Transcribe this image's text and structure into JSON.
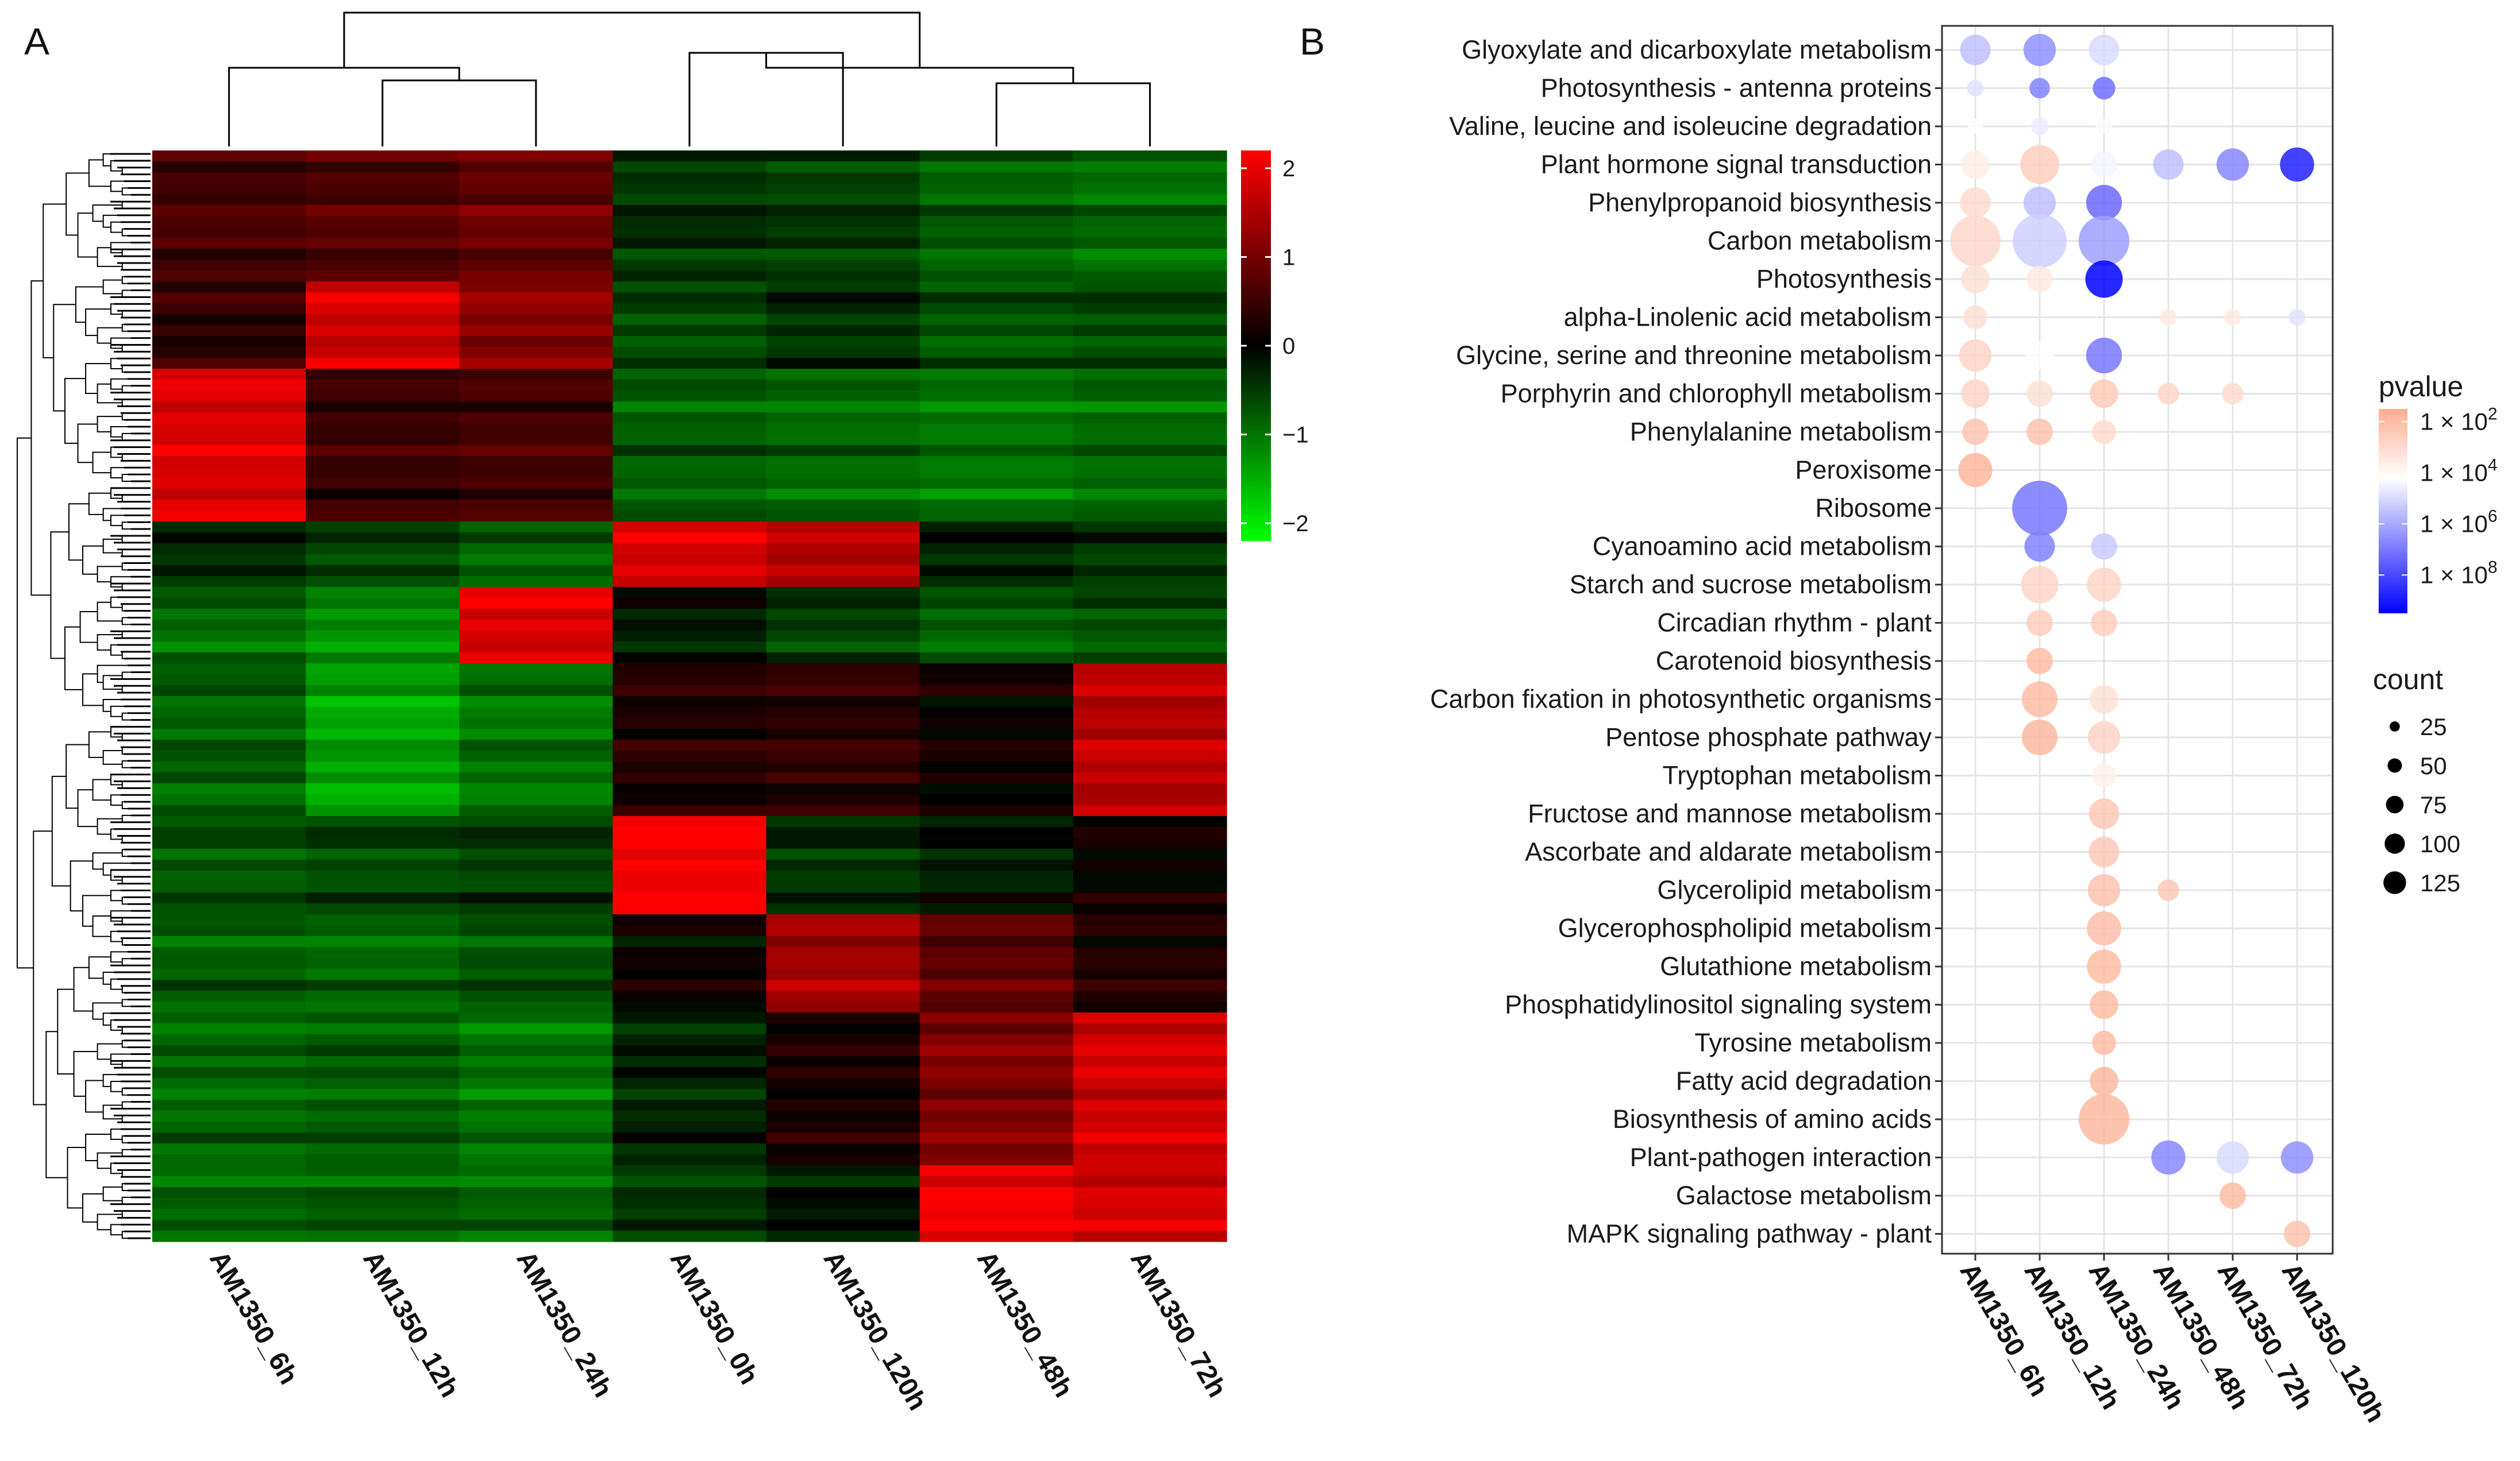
{
  "panels": {
    "a": "A",
    "b": "B"
  },
  "chart_data": [
    {
      "type": "heatmap",
      "title": "A",
      "columns": [
        "AM1350_6h",
        "AM1350_12h",
        "AM1350_24h",
        "AM1350_0h",
        "AM1350_120h",
        "AM1350_48h",
        "AM1350_72h"
      ],
      "colorbar": {
        "ticks": [
          2,
          1,
          0,
          -1,
          -2
        ],
        "tick_labels": [
          "2",
          "1",
          "0",
          "−1",
          "−2"
        ],
        "range": [
          -2.2,
          2.2
        ],
        "low_color": "#00ff00",
        "mid_color": "#000000",
        "high_color": "#ff0000"
      },
      "column_dendrogram": "((AM1350_6h,(AM1350_12h,AM1350_24h)),((AM1350_0h,AM1350_120h),(AM1350_48h,AM1350_72h)))",
      "row_blocks": [
        {
          "rows": 12,
          "values": [
            0.6,
            0.7,
            0.9,
            -0.4,
            -0.5,
            -0.8,
            -0.9
          ]
        },
        {
          "rows": 8,
          "values": [
            0.4,
            1.8,
            1.2,
            -0.6,
            -0.4,
            -0.7,
            -0.6
          ]
        },
        {
          "rows": 14,
          "values": [
            1.9,
            0.5,
            0.6,
            -0.8,
            -0.9,
            -1.0,
            -0.9
          ]
        },
        {
          "rows": 6,
          "values": [
            -0.3,
            -0.5,
            -0.8,
            1.9,
            1.6,
            -0.2,
            -0.4
          ]
        },
        {
          "rows": 7,
          "values": [
            -0.9,
            -1.2,
            1.9,
            -0.2,
            -0.5,
            -0.8,
            -0.7
          ]
        },
        {
          "rows": 14,
          "values": [
            -0.8,
            -1.4,
            -1.0,
            0.3,
            0.4,
            0.1,
            1.6
          ]
        },
        {
          "rows": 9,
          "values": [
            -0.7,
            -0.6,
            -0.5,
            2.2,
            -0.4,
            -0.2,
            0.1
          ]
        },
        {
          "rows": 9,
          "values": [
            -0.8,
            -0.9,
            -0.7,
            0.1,
            1.4,
            0.8,
            0.3
          ]
        },
        {
          "rows": 14,
          "values": [
            -0.9,
            -0.8,
            -1.0,
            -0.3,
            0.2,
            1.1,
            1.8
          ]
        },
        {
          "rows": 7,
          "values": [
            -0.9,
            -0.8,
            -0.9,
            -0.5,
            -0.2,
            2.1,
            1.8
          ]
        }
      ]
    },
    {
      "type": "scatter",
      "title": "B",
      "x_categories": [
        "AM1350_6h",
        "AM1350_12h",
        "AM1350_24h",
        "AM1350_48h",
        "AM1350_72h",
        "AM1350_120h"
      ],
      "y_categories": [
        "Glyoxylate and dicarboxylate metabolism",
        "Photosynthesis - antenna proteins",
        "Valine, leucine and isoleucine degradation",
        "Plant hormone signal transduction",
        "Phenylpropanoid biosynthesis",
        "Carbon metabolism",
        "Photosynthesis",
        "alpha-Linolenic acid metabolism",
        "Glycine, serine and threonine metabolism",
        "Porphyrin and chlorophyll metabolism",
        "Phenylalanine metabolism",
        "Peroxisome",
        "Ribosome",
        "Cyanoamino acid metabolism",
        "Starch and sucrose metabolism",
        "Circadian rhythm - plant",
        "Carotenoid biosynthesis",
        "Carbon fixation in photosynthetic organisms",
        "Pentose phosphate pathway",
        "Tryptophan metabolism",
        "Fructose and mannose metabolism",
        "Ascorbate and aldarate metabolism",
        "Glycerolipid metabolism",
        "Glycerophospholipid metabolism",
        "Glutathione metabolism",
        "Phosphatidylinositol signaling system",
        "Tyrosine metabolism",
        "Fatty acid degradation",
        "Biosynthesis of amino acids",
        "Plant-pathogen interaction",
        "Galactose metabolism",
        "MAPK signaling pathway - plant"
      ],
      "points": [
        {
          "x": 0,
          "y": 0,
          "count": 40,
          "log10p": 5.5
        },
        {
          "x": 1,
          "y": 0,
          "count": 45,
          "log10p": 6.5
        },
        {
          "x": 2,
          "y": 0,
          "count": 40,
          "log10p": 5.0
        },
        {
          "x": 0,
          "y": 1,
          "count": 12,
          "log10p": 4.8
        },
        {
          "x": 1,
          "y": 1,
          "count": 18,
          "log10p": 6.8
        },
        {
          "x": 2,
          "y": 1,
          "count": 22,
          "log10p": 7.2
        },
        {
          "x": 0,
          "y": 2,
          "count": 10,
          "log10p": 4.2
        },
        {
          "x": 1,
          "y": 2,
          "count": 14,
          "log10p": 4.6
        },
        {
          "x": 2,
          "y": 2,
          "count": 12,
          "log10p": 4.3
        },
        {
          "x": 0,
          "y": 3,
          "count": 35,
          "log10p": 3.6
        },
        {
          "x": 1,
          "y": 3,
          "count": 65,
          "log10p": 2.6
        },
        {
          "x": 2,
          "y": 3,
          "count": 30,
          "log10p": 4.4
        },
        {
          "x": 3,
          "y": 3,
          "count": 40,
          "log10p": 5.5
        },
        {
          "x": 4,
          "y": 3,
          "count": 45,
          "log10p": 6.7
        },
        {
          "x": 5,
          "y": 3,
          "count": 50,
          "log10p": 8.8
        },
        {
          "x": 0,
          "y": 4,
          "count": 40,
          "log10p": 3.0
        },
        {
          "x": 1,
          "y": 4,
          "count": 45,
          "log10p": 5.5
        },
        {
          "x": 2,
          "y": 4,
          "count": 55,
          "log10p": 7.3
        },
        {
          "x": 0,
          "y": 5,
          "count": 110,
          "log10p": 2.9
        },
        {
          "x": 1,
          "y": 5,
          "count": 125,
          "log10p": 5.2
        },
        {
          "x": 2,
          "y": 5,
          "count": 110,
          "log10p": 6.2
        },
        {
          "x": 0,
          "y": 6,
          "count": 35,
          "log10p": 3.2
        },
        {
          "x": 1,
          "y": 6,
          "count": 30,
          "log10p": 3.5
        },
        {
          "x": 2,
          "y": 6,
          "count": 60,
          "log10p": 9.5
        },
        {
          "x": 0,
          "y": 7,
          "count": 25,
          "log10p": 3.2
        },
        {
          "x": 3,
          "y": 7,
          "count": 12,
          "log10p": 3.5
        },
        {
          "x": 4,
          "y": 7,
          "count": 12,
          "log10p": 3.5
        },
        {
          "x": 5,
          "y": 7,
          "count": 12,
          "log10p": 4.8
        },
        {
          "x": 0,
          "y": 8,
          "count": 45,
          "log10p": 2.8
        },
        {
          "x": 1,
          "y": 8,
          "count": 35,
          "log10p": 4.2
        },
        {
          "x": 2,
          "y": 8,
          "count": 55,
          "log10p": 7.0
        },
        {
          "x": 0,
          "y": 9,
          "count": 35,
          "log10p": 2.8
        },
        {
          "x": 1,
          "y": 9,
          "count": 30,
          "log10p": 3.2
        },
        {
          "x": 2,
          "y": 9,
          "count": 35,
          "log10p": 2.5
        },
        {
          "x": 3,
          "y": 9,
          "count": 20,
          "log10p": 2.8
        },
        {
          "x": 4,
          "y": 9,
          "count": 20,
          "log10p": 3.0
        },
        {
          "x": 0,
          "y": 10,
          "count": 30,
          "log10p": 2.3
        },
        {
          "x": 1,
          "y": 10,
          "count": 30,
          "log10p": 2.2
        },
        {
          "x": 2,
          "y": 10,
          "count": 25,
          "log10p": 3.0
        },
        {
          "x": 0,
          "y": 11,
          "count": 50,
          "log10p": 1.8
        },
        {
          "x": 1,
          "y": 12,
          "count": 130,
          "log10p": 7.0
        },
        {
          "x": 1,
          "y": 13,
          "count": 40,
          "log10p": 6.8
        },
        {
          "x": 2,
          "y": 13,
          "count": 30,
          "log10p": 5.3
        },
        {
          "x": 1,
          "y": 14,
          "count": 60,
          "log10p": 2.8
        },
        {
          "x": 2,
          "y": 14,
          "count": 50,
          "log10p": 2.8
        },
        {
          "x": 1,
          "y": 15,
          "count": 30,
          "log10p": 2.6
        },
        {
          "x": 2,
          "y": 15,
          "count": 30,
          "log10p": 2.6
        },
        {
          "x": 1,
          "y": 16,
          "count": 30,
          "log10p": 2.0
        },
        {
          "x": 1,
          "y": 17,
          "count": 55,
          "log10p": 2.0
        },
        {
          "x": 2,
          "y": 17,
          "count": 35,
          "log10p": 3.2
        },
        {
          "x": 1,
          "y": 18,
          "count": 55,
          "log10p": 1.9
        },
        {
          "x": 2,
          "y": 18,
          "count": 45,
          "log10p": 2.8
        },
        {
          "x": 2,
          "y": 19,
          "count": 25,
          "log10p": 3.7
        },
        {
          "x": 2,
          "y": 20,
          "count": 40,
          "log10p": 2.4
        },
        {
          "x": 2,
          "y": 21,
          "count": 40,
          "log10p": 2.4
        },
        {
          "x": 2,
          "y": 22,
          "count": 45,
          "log10p": 2.2
        },
        {
          "x": 3,
          "y": 22,
          "count": 20,
          "log10p": 2.4
        },
        {
          "x": 2,
          "y": 23,
          "count": 50,
          "log10p": 2.1
        },
        {
          "x": 2,
          "y": 24,
          "count": 50,
          "log10p": 2.0
        },
        {
          "x": 2,
          "y": 25,
          "count": 35,
          "log10p": 2.0
        },
        {
          "x": 2,
          "y": 26,
          "count": 25,
          "log10p": 2.0
        },
        {
          "x": 2,
          "y": 27,
          "count": 35,
          "log10p": 1.9
        },
        {
          "x": 2,
          "y": 28,
          "count": 110,
          "log10p": 1.9
        },
        {
          "x": 3,
          "y": 29,
          "count": 50,
          "log10p": 6.7
        },
        {
          "x": 4,
          "y": 29,
          "count": 45,
          "log10p": 5.0
        },
        {
          "x": 5,
          "y": 29,
          "count": 45,
          "log10p": 6.5
        },
        {
          "x": 4,
          "y": 30,
          "count": 30,
          "log10p": 2.0
        },
        {
          "x": 5,
          "y": 31,
          "count": 30,
          "log10p": 2.2
        }
      ],
      "legend": {
        "color_title": "pvalue",
        "color_scale": {
          "low_color": "#fcae91",
          "mid_color": "#ffffff",
          "high_color": "#0000ff",
          "log10_range": [
            1.5,
            9.5
          ],
          "log10_mid": 4.2
        },
        "color_ticks": [
          {
            "base": "1 × 10",
            "exp": "2",
            "log10": 2
          },
          {
            "base": "1 × 10",
            "exp": "4",
            "log10": 4
          },
          {
            "base": "1 × 10",
            "exp": "6",
            "log10": 6
          },
          {
            "base": "1 × 10",
            "exp": "8",
            "log10": 8
          }
        ],
        "size_title": "count",
        "size_breaks": [
          25,
          50,
          75,
          100,
          125
        ]
      }
    }
  ]
}
